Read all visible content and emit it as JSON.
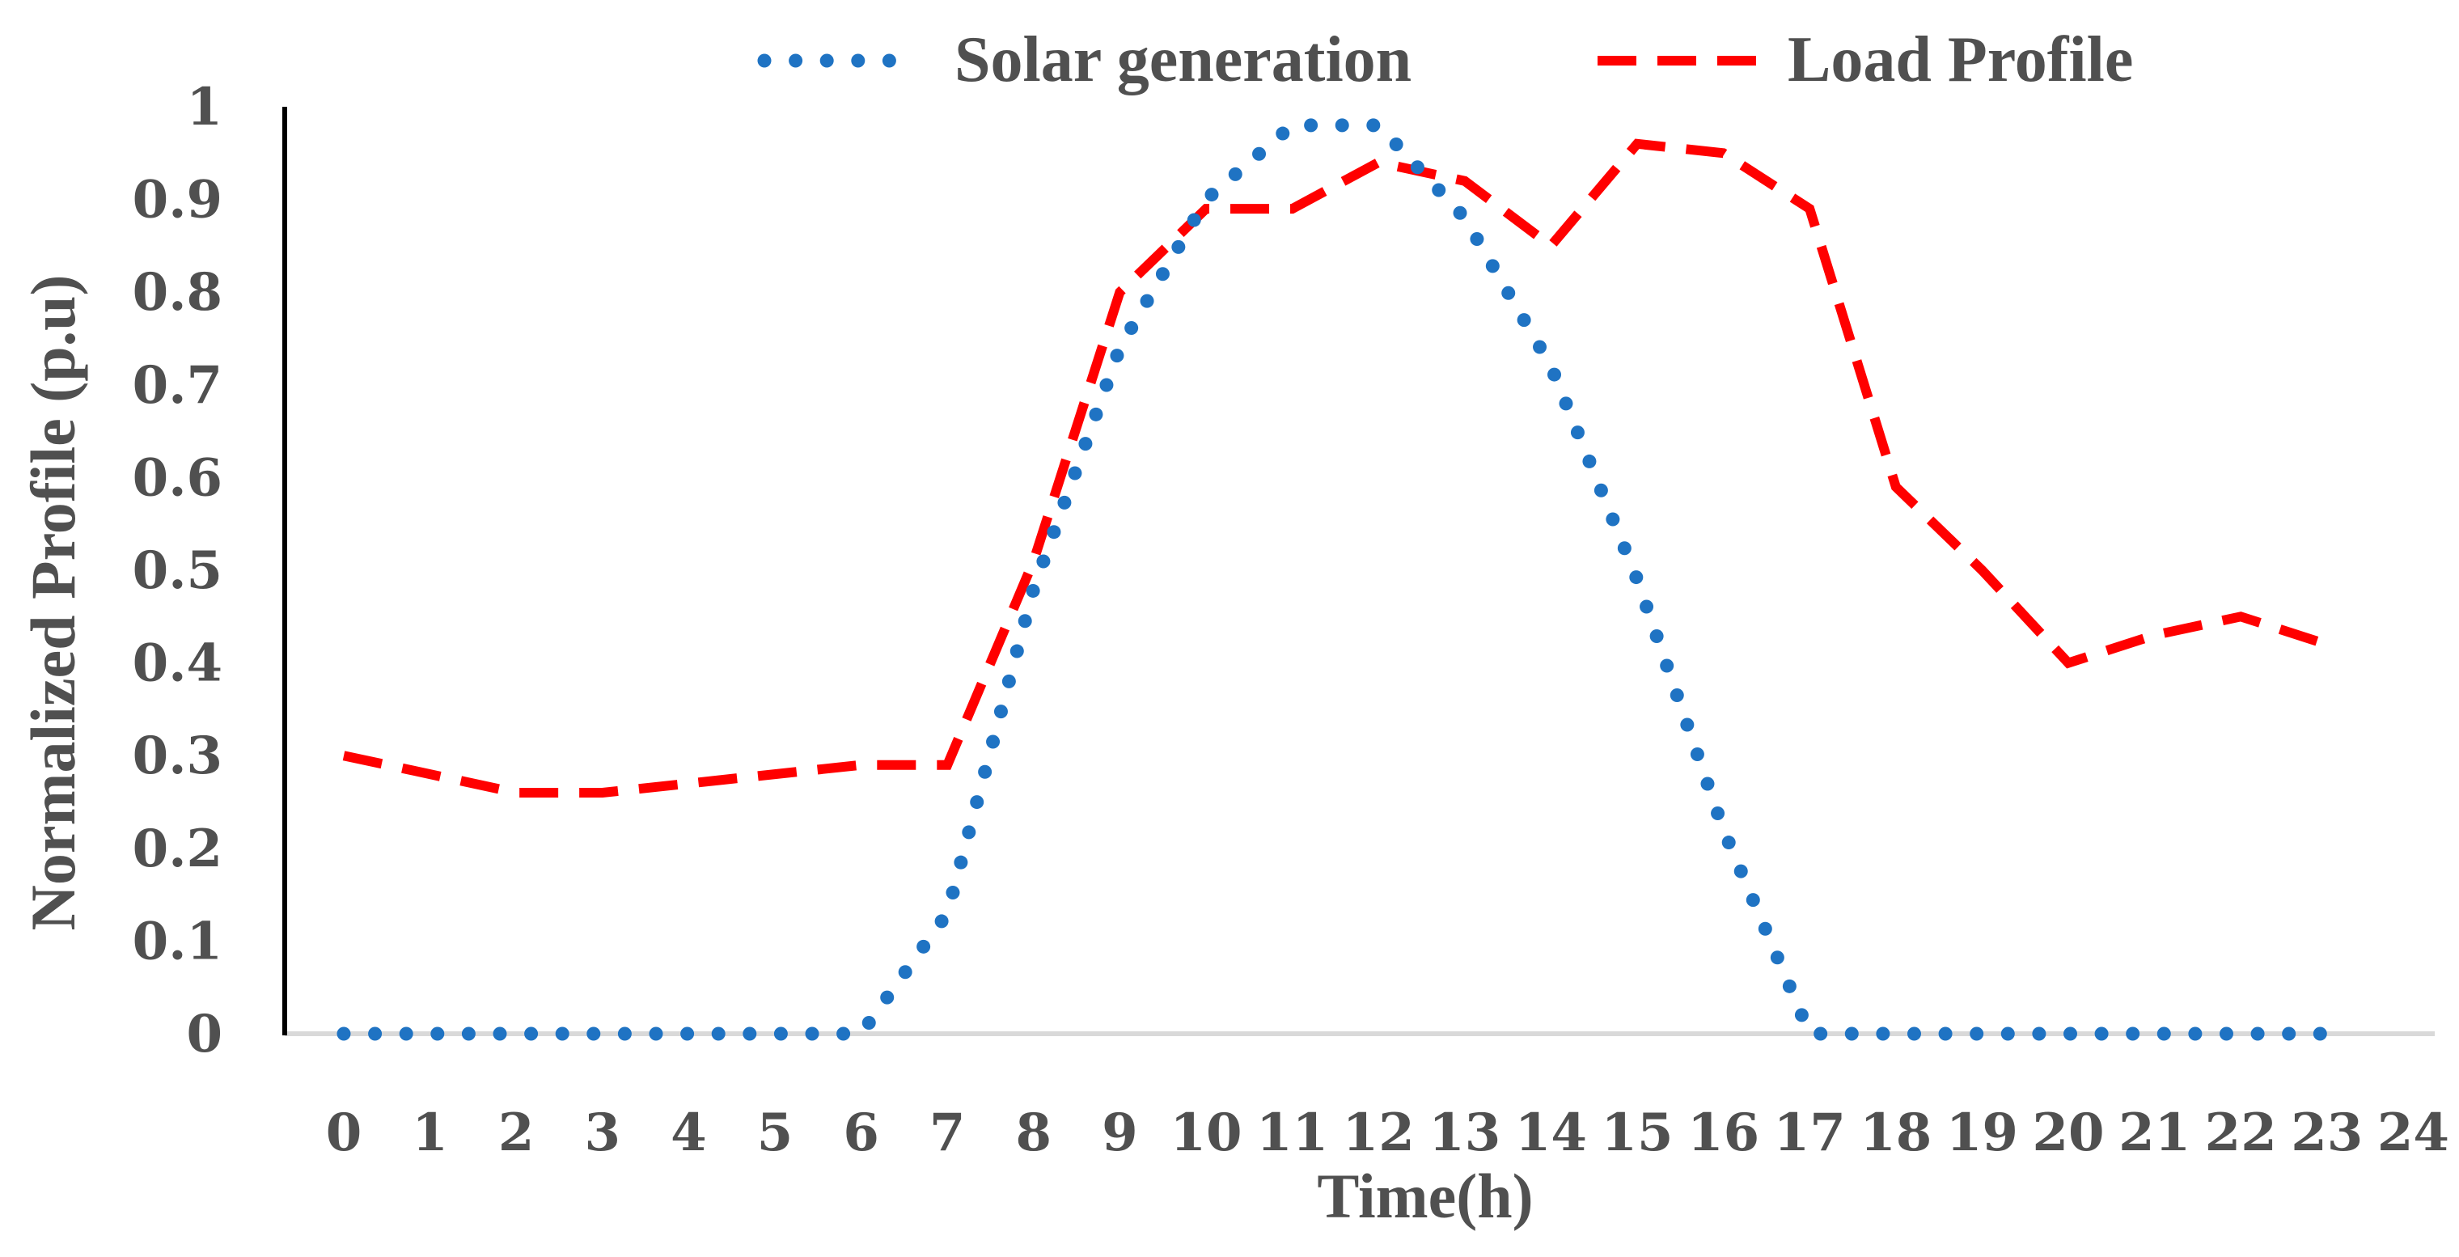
{
  "chart_data": {
    "type": "line",
    "title": "",
    "xlabel": "Time(h)",
    "ylabel": "Normalized Profile (p.u)",
    "x_ticks": [
      "0",
      "1",
      "2",
      "3",
      "4",
      "5",
      "6",
      "7",
      "8",
      "9",
      "10",
      "11",
      "12",
      "13",
      "14",
      "15",
      "16",
      "17",
      "18",
      "19",
      "20",
      "21",
      "22",
      "23",
      "24"
    ],
    "y_ticks": [
      "0",
      "0.1",
      "0.2",
      "0.3",
      "0.4",
      "0.5",
      "0.6",
      "0.7",
      "0.8",
      "0.9",
      "1"
    ],
    "xlim": [
      0,
      24
    ],
    "ylim": [
      0,
      1
    ],
    "grid": false,
    "legend_position": "top",
    "series": [
      {
        "name": "Solar generation",
        "color": "#1f73c3",
        "style": "dotted",
        "x": [
          0,
          1,
          2,
          3,
          4,
          5,
          6,
          7,
          8,
          9,
          10,
          11,
          12,
          13,
          14,
          15,
          16,
          17,
          18,
          19,
          20,
          21,
          22,
          23
        ],
        "values": [
          0,
          0,
          0,
          0,
          0,
          0,
          0,
          0.13,
          0.48,
          0.74,
          0.9,
          0.98,
          0.98,
          0.88,
          0.72,
          0.49,
          0.22,
          0,
          0,
          0,
          0,
          0,
          0,
          0
        ]
      },
      {
        "name": "Load Profile",
        "color": "#ff0000",
        "style": "dashed",
        "x": [
          0,
          1,
          2,
          3,
          4,
          5,
          6,
          7,
          8,
          9,
          10,
          11,
          12,
          13,
          14,
          15,
          16,
          17,
          18,
          19,
          20,
          21,
          22,
          23
        ],
        "values": [
          0.3,
          0.28,
          0.26,
          0.26,
          0.27,
          0.28,
          0.29,
          0.29,
          0.51,
          0.8,
          0.89,
          0.89,
          0.94,
          0.92,
          0.85,
          0.96,
          0.95,
          0.89,
          0.59,
          0.5,
          0.4,
          0.43,
          0.45,
          0.42
        ]
      }
    ]
  }
}
